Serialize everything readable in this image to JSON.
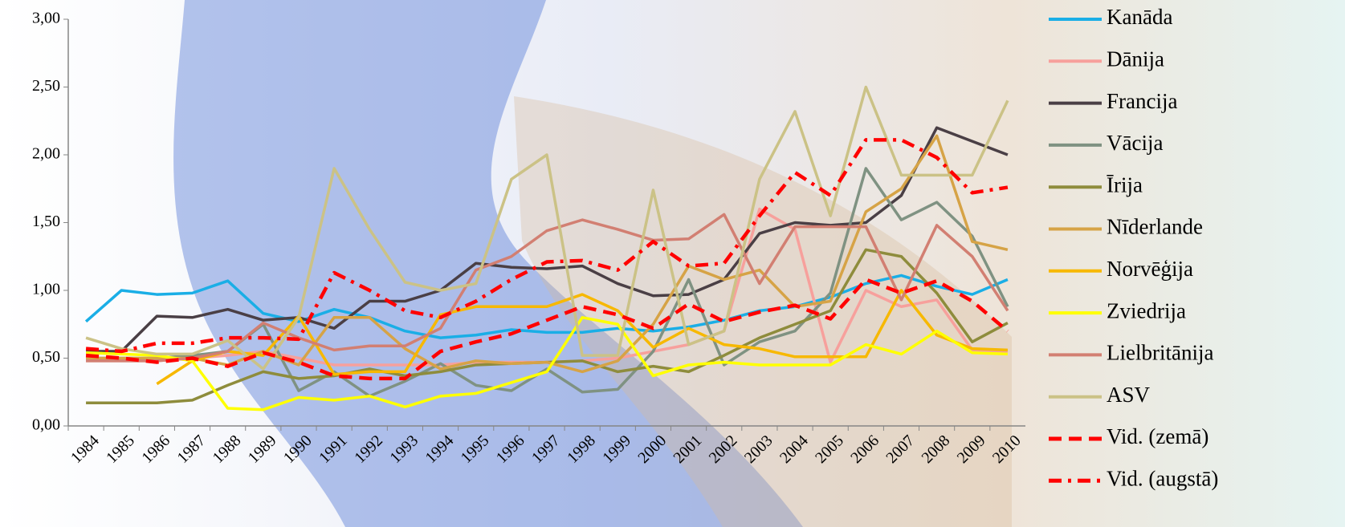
{
  "chart_data": {
    "type": "line",
    "categories": [
      "1984",
      "1985",
      "1986",
      "1987",
      "1988",
      "1989",
      "1990",
      "1991",
      "1992",
      "1993",
      "1994",
      "1995",
      "1996",
      "1997",
      "1998",
      "1999",
      "2000",
      "2001",
      "2002",
      "2003",
      "2004",
      "2005",
      "2006",
      "2007",
      "2008",
      "2009",
      "2010"
    ],
    "ylim": [
      0,
      3
    ],
    "yticks": [
      {
        "value": 0,
        "label": "0,00"
      },
      {
        "value": 0.5,
        "label": "0,50"
      },
      {
        "value": 1,
        "label": "1,00"
      },
      {
        "value": 1.5,
        "label": "1,50"
      },
      {
        "value": 2,
        "label": "2,00"
      },
      {
        "value": 2.5,
        "label": "2,50"
      },
      {
        "value": 3,
        "label": "3,00"
      }
    ],
    "legend_position": "right",
    "series": [
      {
        "name": "Kanāda",
        "color": "#1aaee6",
        "dash": "solid",
        "values": [
          0.77,
          1.0,
          0.97,
          0.98,
          1.07,
          0.83,
          0.77,
          0.86,
          0.8,
          0.7,
          0.65,
          0.67,
          0.71,
          0.69,
          0.69,
          0.72,
          0.7,
          0.73,
          0.78,
          0.85,
          0.88,
          0.95,
          1.05,
          1.11,
          1.03,
          0.97,
          1.08
        ]
      },
      {
        "name": "Dānija",
        "color": "#f7a09c",
        "dash": "solid",
        "values": [
          0.48,
          0.48,
          0.48,
          0.5,
          0.52,
          0.55,
          0.5,
          0.45,
          0.45,
          0.45,
          0.45,
          0.47,
          0.47,
          0.47,
          0.48,
          0.5,
          0.55,
          0.6,
          0.7,
          1.6,
          1.45,
          0.47,
          1.0,
          0.88,
          0.93,
          0.56,
          0.55
        ]
      },
      {
        "name": "Francija",
        "color": "#4a3f45",
        "dash": "solid",
        "values": [
          0.55,
          0.55,
          0.81,
          0.8,
          0.86,
          0.78,
          0.8,
          0.72,
          0.92,
          0.92,
          1.0,
          1.2,
          1.17,
          1.16,
          1.18,
          1.05,
          0.96,
          0.97,
          1.08,
          1.42,
          1.5,
          1.48,
          1.5,
          1.7,
          2.2,
          2.1,
          2.0
        ]
      },
      {
        "name": "Vācija",
        "color": "#7f9282",
        "dash": "solid",
        "values": [
          0.5,
          0.5,
          0.5,
          0.52,
          0.55,
          0.75,
          0.26,
          0.4,
          0.22,
          0.33,
          0.46,
          0.3,
          0.26,
          0.42,
          0.25,
          0.27,
          0.55,
          1.08,
          0.45,
          0.62,
          0.7,
          0.98,
          1.9,
          1.52,
          1.65,
          1.4,
          0.88
        ]
      },
      {
        "name": "Īrija",
        "color": "#8e8c3c",
        "dash": "solid",
        "values": [
          0.17,
          0.17,
          0.17,
          0.19,
          0.3,
          0.4,
          0.35,
          0.37,
          0.42,
          0.37,
          0.4,
          0.45,
          0.46,
          0.47,
          0.48,
          0.4,
          0.44,
          0.4,
          0.52,
          0.65,
          0.75,
          0.85,
          1.3,
          1.25,
          0.98,
          0.62,
          0.76
        ]
      },
      {
        "name": "Nīderlande",
        "color": "#d6a346",
        "dash": "solid",
        "values": [
          0.5,
          0.5,
          0.5,
          0.5,
          0.45,
          0.55,
          0.45,
          0.8,
          0.8,
          0.57,
          0.42,
          0.48,
          0.46,
          0.47,
          0.4,
          0.48,
          0.75,
          1.18,
          1.08,
          1.15,
          0.88,
          0.92,
          1.58,
          1.75,
          2.14,
          1.36,
          1.3
        ]
      },
      {
        "name": "Norvēģija",
        "color": "#f7b800",
        "dash": "solid",
        "values": [
          null,
          null,
          0.31,
          0.48,
          0.55,
          0.52,
          0.81,
          0.38,
          0.4,
          0.4,
          0.82,
          0.88,
          0.88,
          0.88,
          0.97,
          0.85,
          0.58,
          0.72,
          0.6,
          0.57,
          0.51,
          0.51,
          0.51,
          1.0,
          0.67,
          0.57,
          0.56
        ]
      },
      {
        "name": "Zviedrija",
        "color": "#ffff00",
        "dash": "solid",
        "values": [
          0.54,
          0.53,
          0.52,
          0.48,
          0.13,
          0.12,
          0.21,
          0.19,
          0.22,
          0.14,
          0.22,
          0.24,
          0.32,
          0.4,
          0.8,
          0.75,
          0.37,
          0.45,
          0.47,
          0.45,
          0.45,
          0.45,
          0.6,
          0.53,
          0.7,
          0.54,
          0.53
        ]
      },
      {
        "name": "Lielbritānija",
        "color": "#d27f72",
        "dash": "solid",
        "values": [
          0.48,
          0.48,
          0.48,
          0.5,
          0.55,
          0.76,
          0.65,
          0.56,
          0.59,
          0.59,
          0.72,
          1.15,
          1.25,
          1.44,
          1.52,
          1.45,
          1.37,
          1.38,
          1.56,
          1.05,
          1.47,
          1.47,
          1.47,
          0.93,
          1.48,
          1.25,
          0.85
        ]
      },
      {
        "name": "ASV",
        "color": "#cbc286",
        "dash": "solid",
        "values": [
          0.65,
          0.57,
          0.53,
          0.53,
          0.63,
          0.42,
          0.8,
          1.9,
          1.45,
          1.06,
          1.0,
          1.05,
          1.82,
          2.0,
          0.52,
          0.52,
          1.74,
          0.6,
          0.7,
          1.82,
          2.32,
          1.55,
          2.5,
          1.85,
          1.85,
          1.85,
          2.4
        ]
      },
      {
        "name": "Vid. (zemā)",
        "color": "#ff0000",
        "dash": "dashed",
        "values": [
          0.52,
          0.5,
          0.47,
          0.5,
          0.44,
          0.54,
          0.47,
          0.37,
          0.35,
          0.35,
          0.55,
          0.62,
          0.68,
          0.78,
          0.88,
          0.82,
          0.72,
          0.9,
          0.77,
          0.84,
          0.89,
          0.79,
          1.08,
          0.98,
          1.07,
          0.92,
          0.7
        ]
      },
      {
        "name": "Vid. (augstā)",
        "color": "#ff0000",
        "dash": "dashdot",
        "values": [
          0.57,
          0.55,
          0.61,
          0.61,
          0.65,
          0.65,
          0.64,
          1.13,
          1.0,
          0.85,
          0.8,
          0.92,
          1.08,
          1.21,
          1.22,
          1.15,
          1.36,
          1.18,
          1.2,
          1.55,
          1.87,
          1.7,
          2.11,
          2.11,
          1.98,
          1.72,
          1.76
        ]
      }
    ]
  }
}
